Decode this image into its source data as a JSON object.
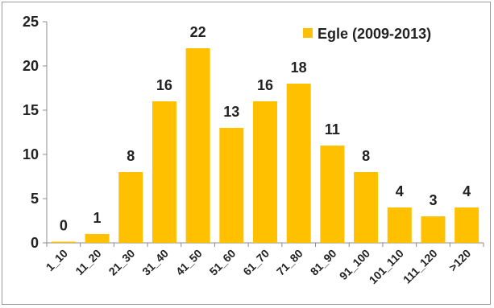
{
  "chart_data": {
    "type": "bar",
    "categories": [
      "1_10",
      "11_20",
      "21_30",
      "31_40",
      "41_50",
      "51_60",
      "61_70",
      "71_80",
      "81_90",
      "91_100",
      "101_110",
      "111_120",
      ">120"
    ],
    "series": [
      {
        "name": "Egle (2009-2013)",
        "values": [
          0,
          1,
          8,
          16,
          22,
          13,
          16,
          18,
          11,
          8,
          4,
          3,
          4
        ],
        "data_labels": [
          "0",
          "1",
          "8",
          "16",
          "22",
          "13",
          "16",
          "18",
          "11",
          "8",
          "4",
          "3",
          "4"
        ],
        "color": "#FFC000"
      }
    ],
    "title": "",
    "xlabel": "",
    "ylabel": "",
    "ylim": [
      0,
      25
    ],
    "yticks": [
      0,
      5,
      10,
      15,
      20,
      25
    ],
    "grid": false,
    "legend": "top-right"
  }
}
